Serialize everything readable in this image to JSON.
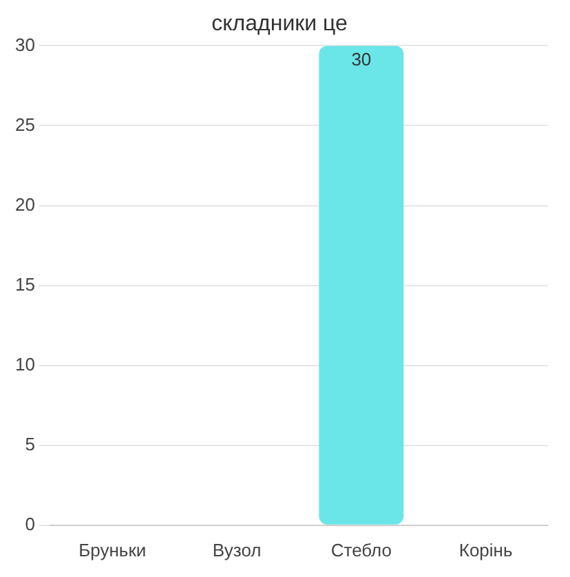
{
  "chart_data": {
    "type": "bar",
    "title": "складники це",
    "categories": [
      "Бруньки",
      "Вузол",
      "Стебло",
      "Корінь"
    ],
    "values": [
      0,
      0,
      30,
      0
    ],
    "color": "#6ae5e8",
    "value_labels": [
      null,
      null,
      "30",
      null
    ],
    "ylim": [
      0,
      30
    ],
    "yticks": [
      0,
      5,
      10,
      15,
      20,
      25,
      30
    ],
    "grid": "y"
  }
}
